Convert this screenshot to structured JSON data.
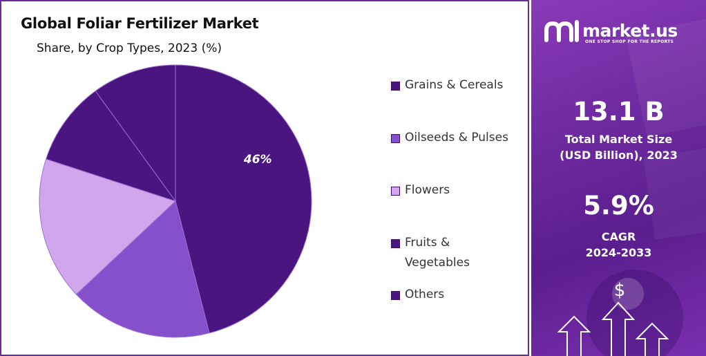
{
  "chart_data": {
    "type": "pie",
    "title": "Global Foliar Fertilizer Market",
    "subtitle": "Share, by Crop Types, 2023 (%)",
    "categories": [
      "Grains & Cereals",
      "Oilseeds & Pulses",
      "Flowers",
      "Fruits & Vegetables",
      "Others"
    ],
    "values": [
      46,
      17,
      17,
      10,
      10
    ],
    "colors": [
      "#4b1580",
      "#8650cc",
      "#d1a6ec",
      "#4b1580",
      "#4b1580"
    ],
    "data_labels": [
      "46%",
      "",
      "",
      "",
      ""
    ],
    "legend_labels": [
      "Grains & Cereals",
      "Oilseeds & Pulses",
      "Flowers",
      "Fruits &\nVegetables",
      "Others"
    ],
    "legend_position": "right"
  },
  "sidebar": {
    "brand": "market.us",
    "tagline": "ONE STOP SHOP FOR THE REPORTS",
    "market_size_value": "13.1 B",
    "market_size_label_1": "Total Market Size",
    "market_size_label_2": "(USD Billion), 2023",
    "cagr_value": "5.9%",
    "cagr_label_1": "CAGR",
    "cagr_label_2": "2024-2033",
    "accent_color": "#6e2aa0"
  }
}
